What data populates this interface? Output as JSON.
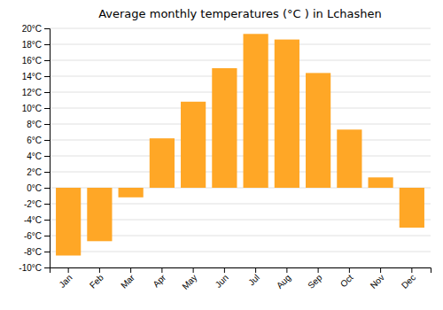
{
  "chart_data": {
    "type": "bar",
    "title": "Average monthly temperatures (°C ) in Lchashen",
    "categories": [
      "Jan",
      "Feb",
      "Mar",
      "Apr",
      "May",
      "Jun",
      "Jul",
      "Aug",
      "Sep",
      "Oct",
      "Nov",
      "Dec"
    ],
    "values": [
      -8.5,
      -6.7,
      -1.2,
      6.2,
      10.8,
      15.0,
      19.3,
      18.6,
      14.4,
      7.3,
      1.3,
      -5.0
    ],
    "color": "#FFA726",
    "ylim": [
      -10,
      20
    ],
    "yticks": [
      {
        "value": -10,
        "label": "-10°C"
      },
      {
        "value": -8,
        "label": "-8°C"
      },
      {
        "value": -6,
        "label": "-6°C"
      },
      {
        "value": -4,
        "label": "-4°C"
      },
      {
        "value": -2,
        "label": "-2°C"
      },
      {
        "value": 0,
        "label": "0°C"
      },
      {
        "value": 2,
        "label": "2°C"
      },
      {
        "value": 4,
        "label": "4°C"
      },
      {
        "value": 6,
        "label": "6°C"
      },
      {
        "value": 8,
        "label": "8°C"
      },
      {
        "value": 10,
        "label": "10°C"
      },
      {
        "value": 12,
        "label": "12°C"
      },
      {
        "value": 14,
        "label": "14°C"
      },
      {
        "value": 16,
        "label": "16°C"
      },
      {
        "value": 18,
        "label": "18°C"
      },
      {
        "value": 20,
        "label": "20°C"
      }
    ],
    "grid": true
  }
}
